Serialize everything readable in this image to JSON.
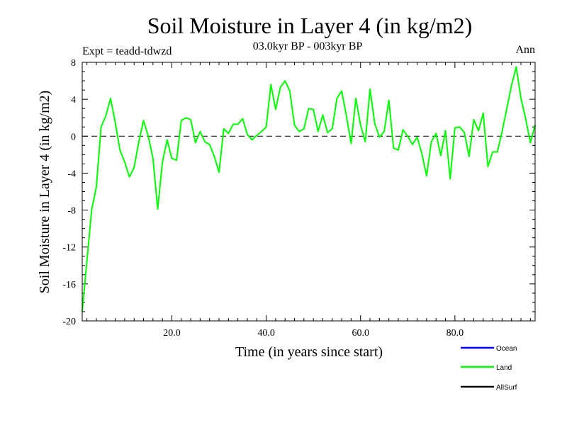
{
  "chart_data": {
    "type": "line",
    "title": "Soil Moisture in Layer 4 (in kg/m2)",
    "subtitle": "03.0kyr BP - 003kyr BP",
    "experiment": "Expt = teadd-tdwzd",
    "season": "Ann",
    "xlabel": "Time (in years since start)",
    "ylabel": "Soil Moisture in Layer 4 (in kg/m2)",
    "xlim": [
      1,
      97
    ],
    "ylim": [
      -20,
      8
    ],
    "x_ticks": [
      20,
      40,
      60,
      80
    ],
    "x_tick_labels": [
      "20.0",
      "40.0",
      "60.0",
      "80.0"
    ],
    "y_ticks": [
      -20,
      -16,
      -12,
      -8,
      -4,
      0,
      4,
      8
    ],
    "y_tick_labels": [
      "-20",
      "-16",
      "-12",
      "-8",
      "-4",
      "0",
      "4",
      "8"
    ],
    "zero_line": true,
    "legend": {
      "placement": "bottom-right",
      "entries": [
        {
          "name": "Ocean",
          "color": "#0000ff"
        },
        {
          "name": "Land",
          "color": "#00ff00"
        },
        {
          "name": "AllSurf",
          "color": "#000000"
        }
      ]
    },
    "series": [
      {
        "name": "Land",
        "color": "#00ff00",
        "x": [
          1,
          2,
          3,
          4,
          5,
          6,
          7,
          8,
          9,
          10,
          11,
          12,
          13,
          14,
          15,
          16,
          17,
          18,
          19,
          20,
          21,
          22,
          23,
          24,
          25,
          26,
          27,
          28,
          29,
          30,
          31,
          32,
          33,
          34,
          35,
          36,
          37,
          38,
          39,
          40,
          41,
          42,
          43,
          44,
          45,
          46,
          47,
          48,
          49,
          50,
          51,
          52,
          53,
          54,
          55,
          56,
          57,
          58,
          59,
          60,
          61,
          62,
          63,
          64,
          65,
          66,
          67,
          68,
          69,
          70,
          71,
          72,
          73,
          74,
          75,
          76,
          77,
          78,
          79,
          80,
          81,
          82,
          83,
          84,
          85,
          86,
          87,
          88,
          89,
          90,
          91,
          92,
          93,
          94,
          95,
          96,
          97
        ],
        "values": [
          -19.0,
          -13.5,
          -8.0,
          -5.5,
          1.0,
          2.2,
          4.1,
          1.5,
          -1.5,
          -2.8,
          -4.4,
          -3.4,
          -0.6,
          1.7,
          0.0,
          -2.4,
          -7.9,
          -2.8,
          -0.4,
          -2.4,
          -2.6,
          1.7,
          2.0,
          1.8,
          -0.7,
          0.5,
          -0.6,
          -0.9,
          -2.2,
          -3.9,
          0.8,
          0.3,
          1.3,
          1.3,
          1.9,
          0.2,
          -0.4,
          0.1,
          0.5,
          1.0,
          5.6,
          2.9,
          5.3,
          6.0,
          4.9,
          1.2,
          0.5,
          0.8,
          3.0,
          2.9,
          0.5,
          2.3,
          0.4,
          0.8,
          4.1,
          4.9,
          2.2,
          -0.8,
          4.1,
          1.2,
          -0.6,
          5.1,
          1.4,
          -0.1,
          0.5,
          3.9,
          -1.3,
          -1.5,
          0.7,
          0.0,
          -0.9,
          -0.1,
          -1.9,
          -4.3,
          -0.6,
          0.3,
          -2.1,
          0.6,
          -4.6,
          0.9,
          1.0,
          0.4,
          -2.2,
          1.8,
          0.6,
          2.5,
          -3.3,
          -1.7,
          -1.7,
          0.5,
          3.0,
          5.5,
          7.5,
          4.1,
          1.9,
          -0.7,
          1.2
        ]
      }
    ]
  }
}
